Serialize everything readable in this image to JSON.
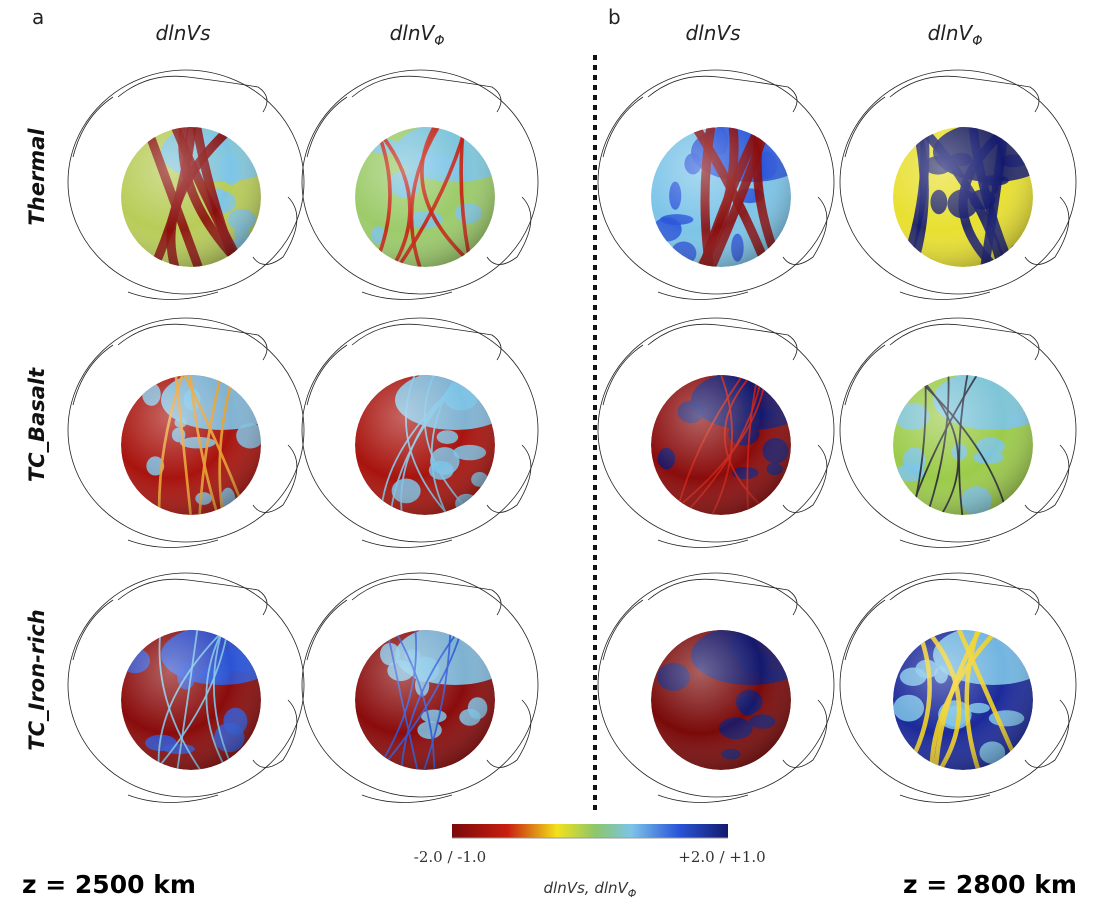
{
  "panels": [
    {
      "label": "a",
      "depth": "z = 2500 km"
    },
    {
      "label": "b",
      "depth": "z = 2800 km"
    }
  ],
  "column_headers": [
    {
      "text": "dlnVs"
    },
    {
      "text": "dlnV",
      "sub": "Φ"
    },
    {
      "text": "dlnVs"
    },
    {
      "text": "dlnV",
      "sub": "Φ"
    }
  ],
  "row_labels": [
    "Thermal",
    "TC_Basalt",
    "TC_Iron-rich"
  ],
  "colorbar": {
    "min_label": "-2.0 / -1.0",
    "max_label": "+2.0 / +1.0",
    "caption": {
      "text": "dlnVs, dlnV",
      "sub": "Φ"
    }
  }
}
